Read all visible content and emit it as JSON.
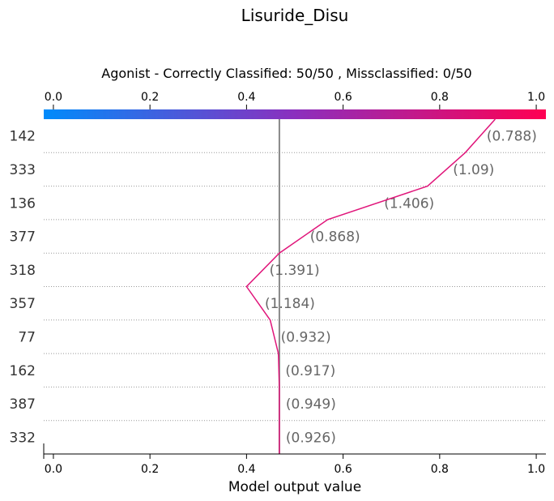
{
  "chart_data": {
    "type": "line",
    "title": "Lisuride_Disu",
    "subtitle": "Agonist - Correctly Classified: 50/50 , Missclassified: 0/50",
    "xlabel": "Model output value",
    "xlim": [
      -0.02,
      1.02
    ],
    "x_ticks": [
      "0.0",
      "0.2",
      "0.4",
      "0.6",
      "0.8",
      "1.0"
    ],
    "x_tick_values": [
      0.0,
      0.2,
      0.4,
      0.6,
      0.8,
      1.0
    ],
    "base_value": 0.468,
    "rows": [
      {
        "label": "142",
        "value_label": "(0.788)"
      },
      {
        "label": "333",
        "value_label": "(1.09)"
      },
      {
        "label": "136",
        "value_label": "(1.406)"
      },
      {
        "label": "377",
        "value_label": "(0.868)"
      },
      {
        "label": "318",
        "value_label": "(1.391)"
      },
      {
        "label": "357",
        "value_label": "(1.184)"
      },
      {
        "label": "77",
        "value_label": "(0.932)"
      },
      {
        "label": "162",
        "value_label": "(0.917)"
      },
      {
        "label": "387",
        "value_label": "(0.949)"
      },
      {
        "label": "332",
        "value_label": "(0.926)"
      }
    ],
    "path_x_top_to_bottom": [
      0.915,
      0.853,
      0.775,
      0.568,
      0.468,
      0.4,
      0.449,
      0.466,
      0.468,
      0.468,
      0.468
    ],
    "colorbar": {
      "from": "#008bfb",
      "mid": "#8b2fbe",
      "to": "#ff0052"
    },
    "line_color": "#e0157a",
    "grid": "dotted horizontal"
  }
}
